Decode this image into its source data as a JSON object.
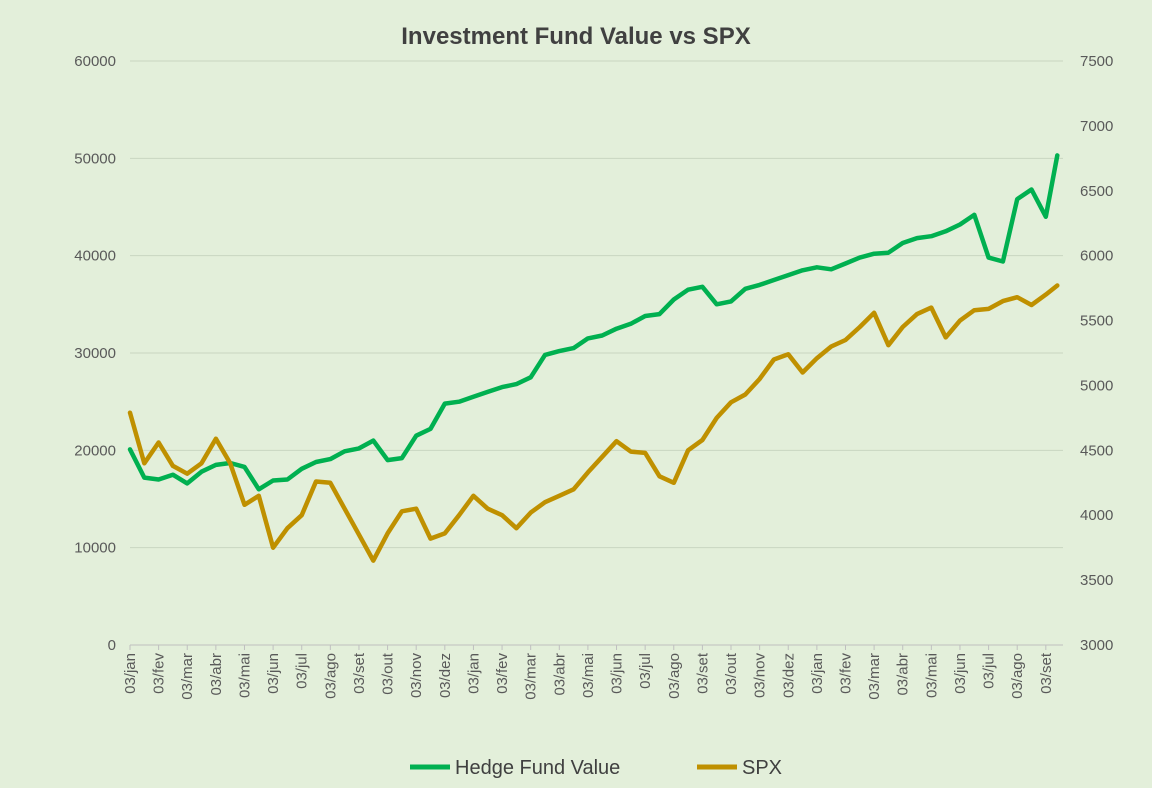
{
  "chart_data": {
    "type": "line",
    "title": "Investment Fund Value vs SPX",
    "x_tick_labels": [
      "03/jan",
      "03/fev",
      "03/mar",
      "03/abr",
      "03/mai",
      "03/jun",
      "03/jul",
      "03/ago",
      "03/set",
      "03/out",
      "03/nov",
      "03/dez",
      "03/jan",
      "03/fev",
      "03/mar",
      "03/abr",
      "03/mai",
      "03/jun",
      "03/jul",
      "03/ago",
      "03/set",
      "03/out",
      "03/nov",
      "03/dez",
      "03/jan",
      "03/fev",
      "03/mar",
      "03/abr",
      "03/mai",
      "03/jun",
      "03/jul",
      "03/ago",
      "03/set"
    ],
    "y_left": {
      "min": 0,
      "max": 60000,
      "ticks": [
        0,
        10000,
        20000,
        30000,
        40000,
        50000,
        60000
      ]
    },
    "y_right": {
      "min": 3000,
      "max": 7500,
      "ticks": [
        3000,
        3500,
        4000,
        4500,
        5000,
        5500,
        6000,
        6500,
        7000,
        7500
      ]
    },
    "series": [
      {
        "name": "Hedge Fund Value",
        "axis": "left",
        "color": "#00b050",
        "month_index": [
          0,
          0.5,
          1,
          1.5,
          2,
          2.5,
          3,
          3.5,
          4,
          4.5,
          5,
          5.5,
          6,
          6.5,
          7,
          7.5,
          8,
          8.5,
          9,
          9.5,
          10,
          10.5,
          11,
          11.5,
          12,
          12.5,
          13,
          13.5,
          14,
          14.5,
          15,
          15.5,
          16,
          16.5,
          17,
          17.5,
          18,
          18.5,
          19,
          19.5,
          20,
          20.5,
          21,
          21.5,
          22,
          22.5,
          23,
          23.5,
          24,
          24.5,
          25,
          25.5,
          26,
          26.5,
          27,
          27.5,
          28,
          28.5,
          29,
          29.5,
          30,
          30.5,
          31,
          31.5,
          32,
          32.4
        ],
        "values": [
          20100,
          17200,
          17000,
          17500,
          16600,
          17800,
          18500,
          18700,
          18300,
          16000,
          16900,
          17000,
          18100,
          18800,
          19100,
          19900,
          20200,
          21000,
          19000,
          19200,
          21500,
          22200,
          24800,
          25000,
          25500,
          26000,
          26500,
          26800,
          27500,
          29800,
          30200,
          30500,
          31500,
          31800,
          32500,
          33000,
          33800,
          34000,
          35500,
          36500,
          36800,
          35000,
          35300,
          36600,
          37000,
          37500,
          38000,
          38500,
          38800,
          38600,
          39200,
          39800,
          40200,
          40300,
          41300,
          41800,
          42000,
          42500,
          43200,
          44200,
          39800,
          39400,
          45800,
          46800,
          44000,
          50300
        ]
      },
      {
        "name": "SPX",
        "axis": "right",
        "color": "#bf9000",
        "month_index": [
          0,
          0.5,
          1,
          1.5,
          2,
          2.5,
          3,
          3.5,
          4,
          4.5,
          5,
          5.5,
          6,
          6.5,
          7,
          7.5,
          8,
          8.5,
          9,
          9.5,
          10,
          10.5,
          11,
          11.5,
          12,
          12.5,
          13,
          13.5,
          14,
          14.5,
          15,
          15.5,
          16,
          16.5,
          17,
          17.5,
          18,
          18.5,
          19,
          19.5,
          20,
          20.5,
          21,
          21.5,
          22,
          22.5,
          23,
          23.5,
          24,
          24.5,
          25,
          25.5,
          26,
          26.5,
          27,
          27.5,
          28,
          28.5,
          29,
          29.5,
          30,
          30.5,
          31,
          31.5,
          32,
          32.4
        ],
        "values": [
          4790,
          4400,
          4560,
          4380,
          4320,
          4400,
          4590,
          4400,
          4080,
          4150,
          3750,
          3900,
          4000,
          4260,
          4250,
          4050,
          3850,
          3650,
          3860,
          4030,
          4050,
          3820,
          3860,
          4000,
          4150,
          4050,
          4000,
          3900,
          4020,
          4100,
          4150,
          4200,
          4330,
          4450,
          4570,
          4490,
          4480,
          4300,
          4250,
          4500,
          4580,
          4750,
          4870,
          4930,
          5050,
          5200,
          5240,
          5100,
          5210,
          5300,
          5350,
          5450,
          5560,
          5310,
          5450,
          5550,
          5600,
          5370,
          5500,
          5580,
          5590,
          5650,
          5680,
          5620,
          5700,
          5770
        ]
      }
    ],
    "legend": {
      "position": "bottom",
      "entries": [
        "Hedge Fund Value",
        "SPX"
      ]
    }
  }
}
